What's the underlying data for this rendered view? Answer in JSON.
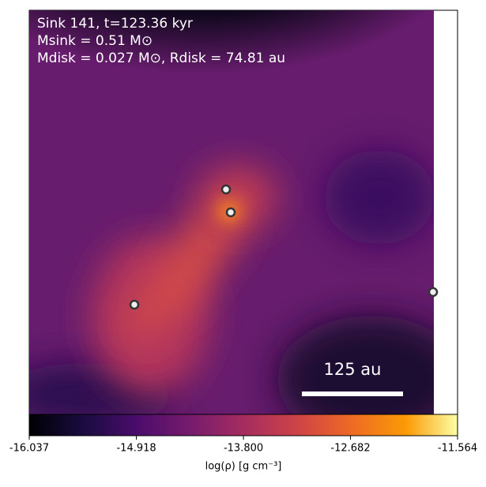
{
  "chart_data": {
    "type": "image",
    "annotations": [
      "Sink 141, t=123.36 kyr",
      "Msink = 0.51 M⊙",
      "Mdisk = 0.027 M⊙, Rdisk = 74.81 au"
    ],
    "scale_bar_label": "125 au",
    "colorbar_label": "log(ρ) [g cm⁻³]",
    "clim": [
      -16.037,
      -11.564
    ],
    "cticks": [
      -16.037,
      -14.918,
      {
        "value": -13.8,
        "label": "-13.800"
      },
      -12.682,
      -11.564
    ]
  }
}
